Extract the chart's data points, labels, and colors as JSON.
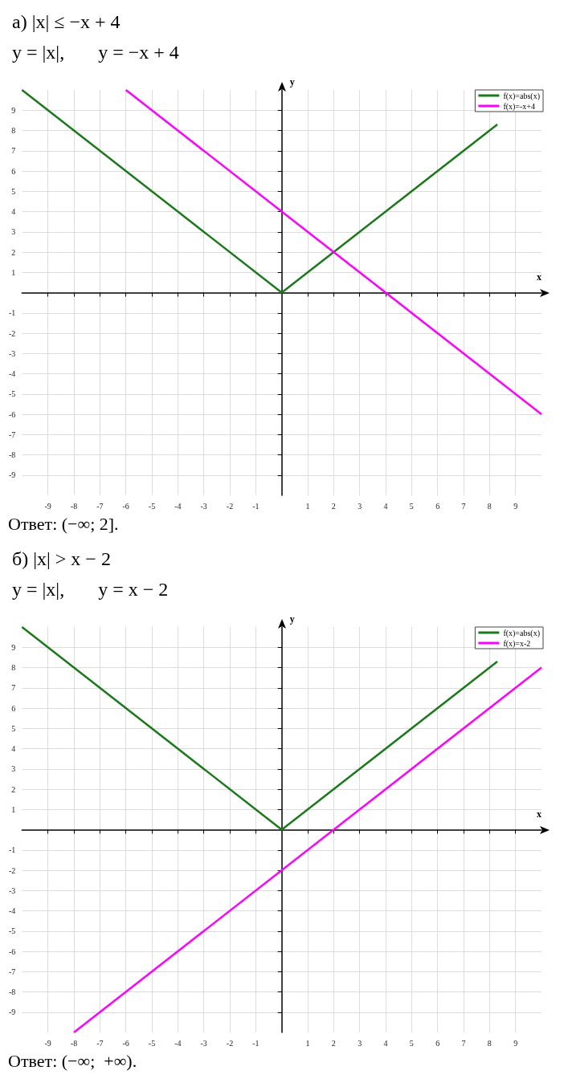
{
  "chart_data": [
    {
      "type": "line",
      "title": "а) |x| ≤ −x + 4",
      "subtitle": "y = |x|,       y = −x + 4",
      "xlabel": "x",
      "ylabel": "y",
      "xlim": [
        -10,
        10
      ],
      "ylim": [
        -10,
        10
      ],
      "xticks": [
        -9,
        -8,
        -7,
        -6,
        -5,
        -4,
        -3,
        -2,
        -1,
        1,
        2,
        3,
        4,
        5,
        6,
        7,
        8,
        9
      ],
      "yticks": [
        -9,
        -8,
        -7,
        -6,
        -5,
        -4,
        -3,
        -2,
        -1,
        1,
        2,
        3,
        4,
        5,
        6,
        7,
        8,
        9
      ],
      "grid": true,
      "legend": "top right",
      "series": [
        {
          "name": "f(x)=abs(x)",
          "color": "#1a7a1a",
          "x": [
            -10,
            0,
            8.3
          ],
          "values": [
            10,
            0,
            8.3
          ]
        },
        {
          "name": "f(x)=-x+4",
          "color": "#ff00ff",
          "x": [
            -6,
            10
          ],
          "values": [
            10,
            -6
          ]
        }
      ],
      "annotations": [
        "Ответ: (−∞; 2]."
      ]
    },
    {
      "type": "line",
      "title": "б) |x| > x − 2",
      "subtitle": "y = |x|,       y = x − 2",
      "xlabel": "x",
      "ylabel": "y",
      "xlim": [
        -10,
        10
      ],
      "ylim": [
        -10,
        10
      ],
      "xticks": [
        -9,
        -8,
        -7,
        -6,
        -5,
        -4,
        -3,
        -2,
        -1,
        1,
        2,
        3,
        4,
        5,
        6,
        7,
        8,
        9
      ],
      "yticks": [
        -9,
        -8,
        -7,
        -6,
        -5,
        -4,
        -3,
        -2,
        -1,
        1,
        2,
        3,
        4,
        5,
        6,
        7,
        8,
        9
      ],
      "grid": true,
      "legend": "top right",
      "series": [
        {
          "name": "f(x)=abs(x)",
          "color": "#1a7a1a",
          "x": [
            -10,
            0,
            8.3
          ],
          "values": [
            10,
            0,
            8.3
          ]
        },
        {
          "name": "f(x)=x-2",
          "color": "#ff00ff",
          "x": [
            -8,
            10
          ],
          "values": [
            -10,
            8
          ]
        }
      ],
      "annotations": [
        "Ответ: (−∞;  +∞)."
      ]
    }
  ]
}
